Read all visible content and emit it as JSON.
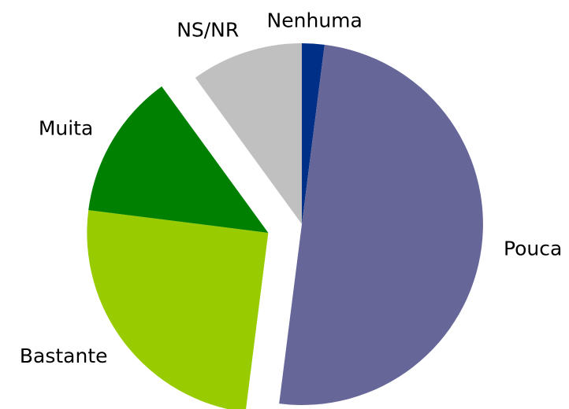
{
  "chart_data": {
    "type": "pie",
    "categories": [
      "Nenhuma",
      "Pouca",
      "Bastante",
      "Muita",
      "NS/NR"
    ],
    "values": [
      2,
      50,
      25,
      13,
      10
    ],
    "colors": [
      "#002f87",
      "#666699",
      "#99cc00",
      "#008000",
      "#c0c0c0"
    ],
    "explode": [
      false,
      false,
      true,
      true,
      false
    ]
  }
}
